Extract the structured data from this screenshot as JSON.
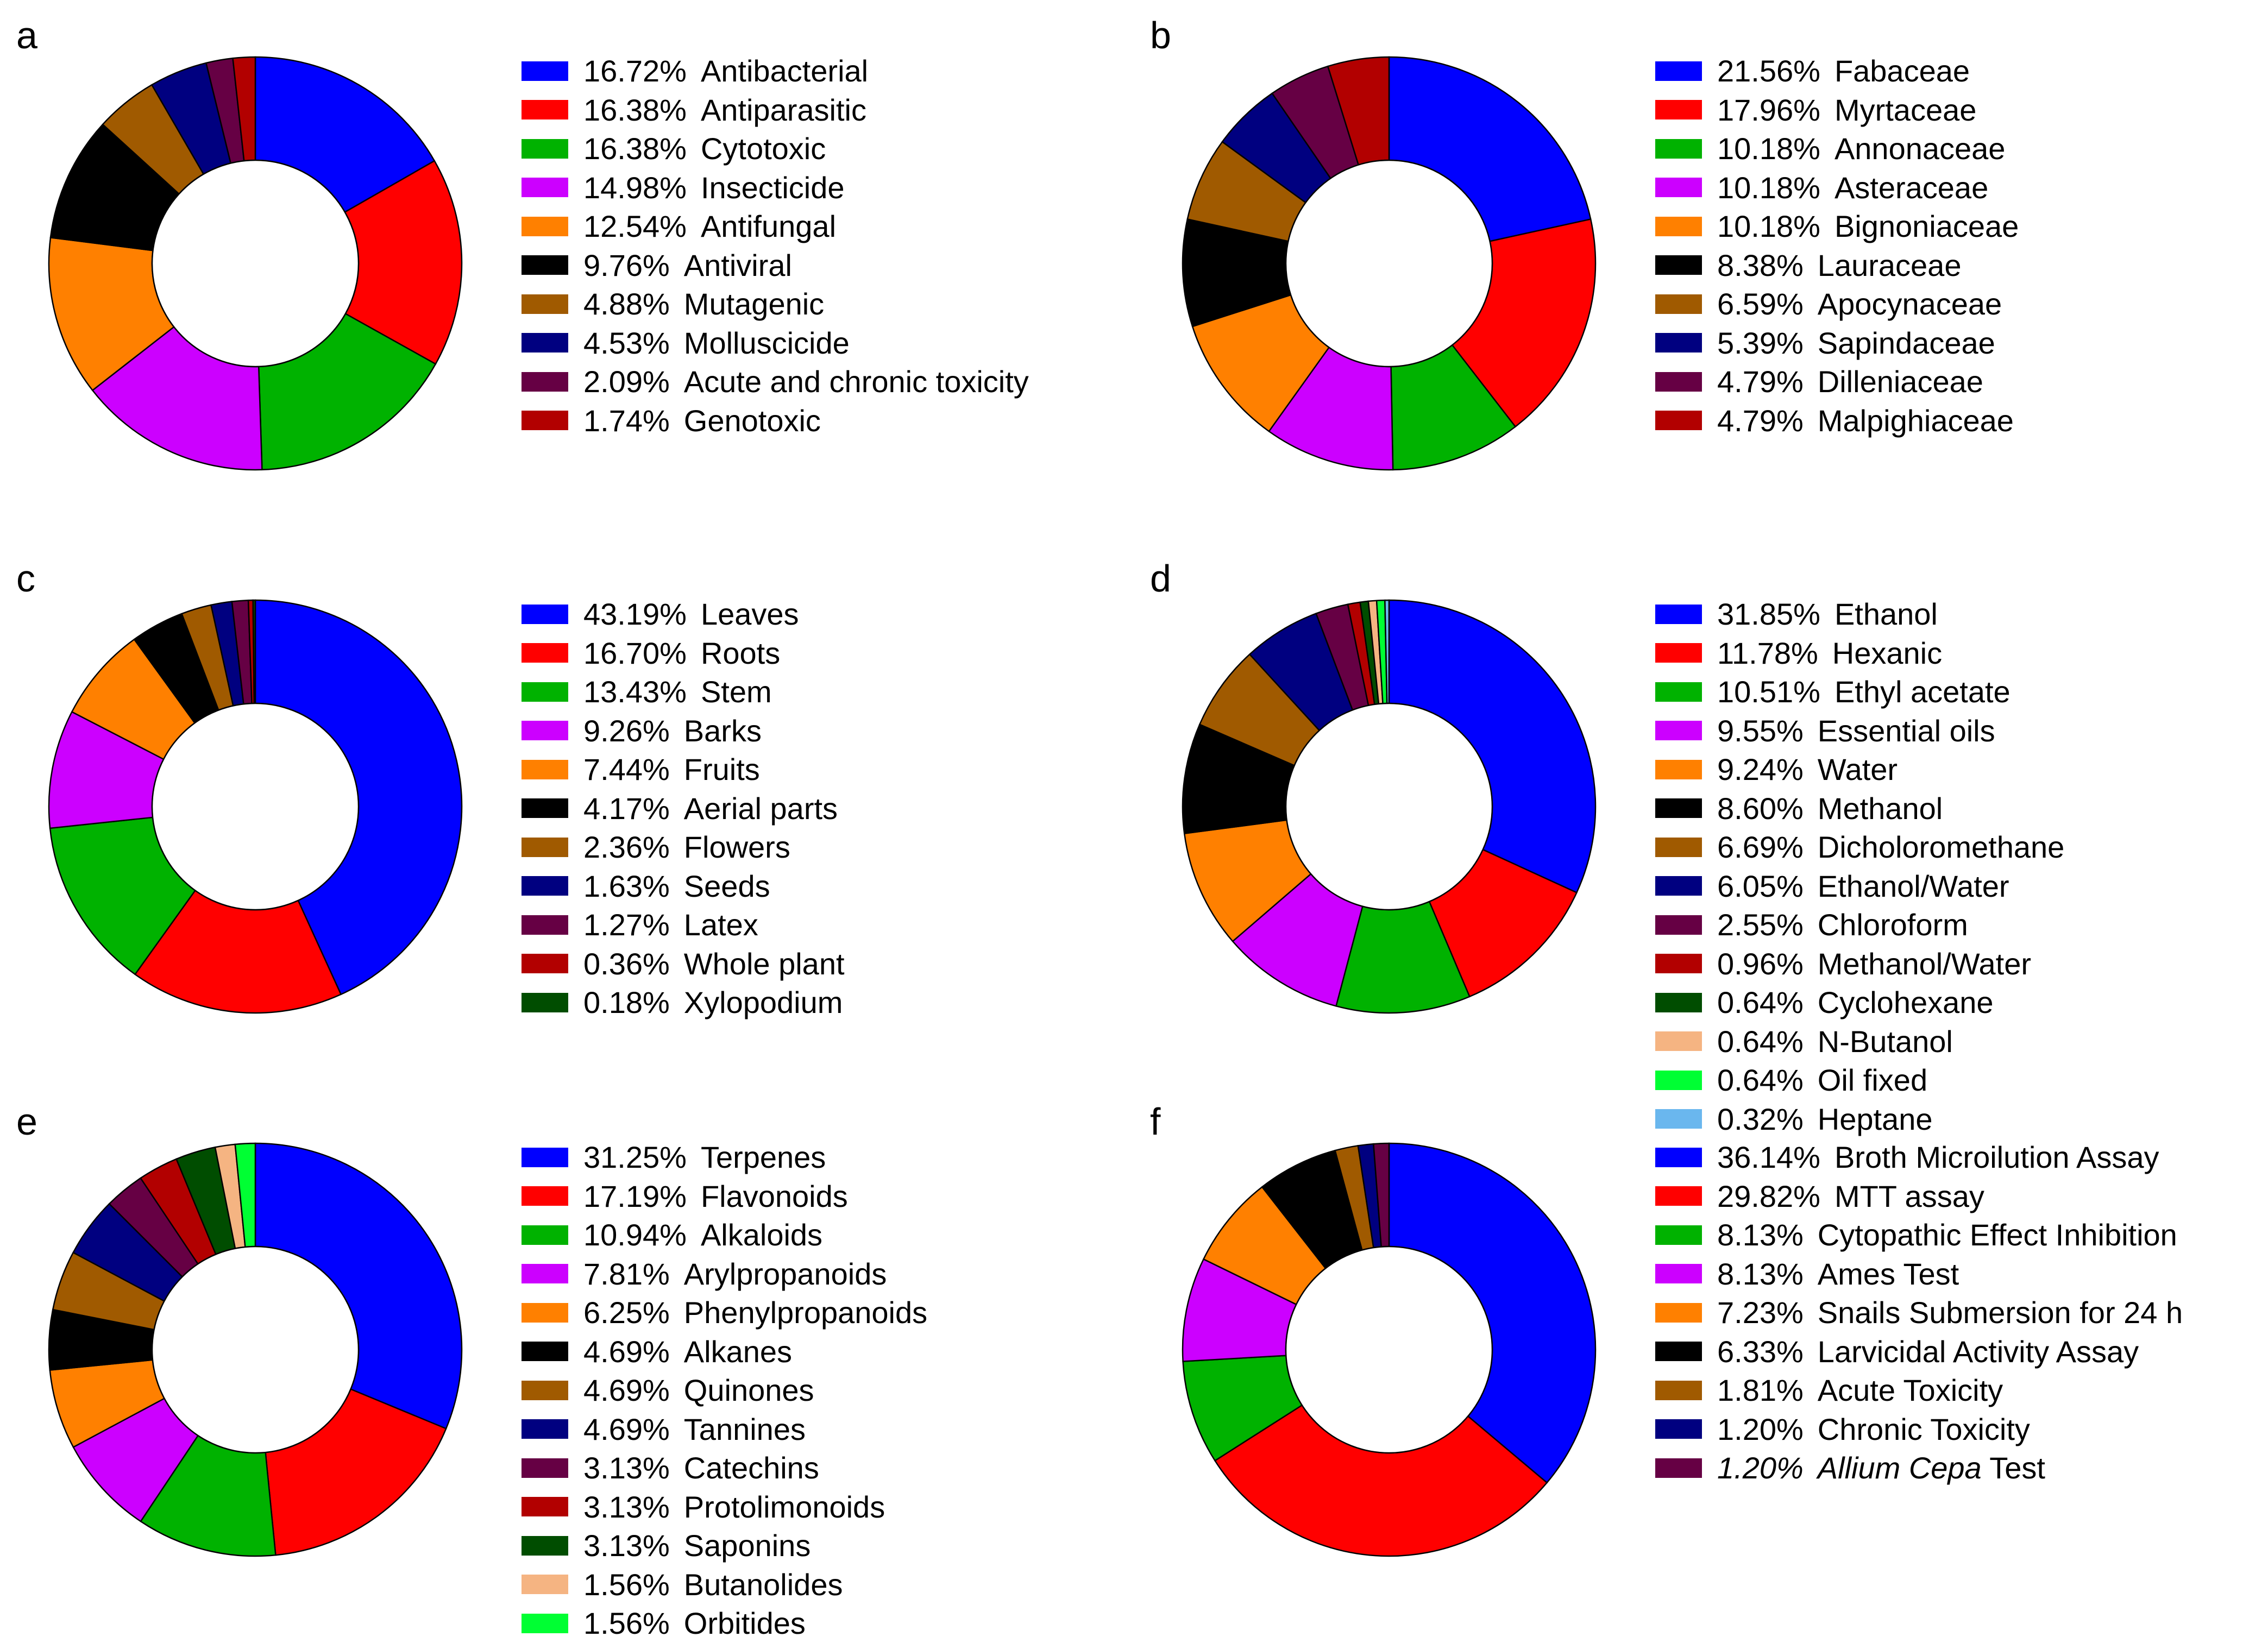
{
  "chart_data": [
    {
      "type": "pie",
      "panel": "a",
      "series": [
        {
          "value": 16.72,
          "pct": "16.72%",
          "label": "Antibacterial",
          "color": "#0000ff"
        },
        {
          "value": 16.38,
          "pct": "16.38%",
          "label": "Antiparasitic",
          "color": "#ff0000"
        },
        {
          "value": 16.38,
          "pct": "16.38%",
          "label": "Cytotoxic",
          "color": "#00b200"
        },
        {
          "value": 14.98,
          "pct": "14.98%",
          "label": "Insecticide",
          "color": "#cc00ff"
        },
        {
          "value": 12.54,
          "pct": "12.54%",
          "label": "Antifungal",
          "color": "#ff8000"
        },
        {
          "value": 9.76,
          "pct": "9.76%",
          "label": "Antiviral",
          "color": "#000000"
        },
        {
          "value": 4.88,
          "pct": "4.88%",
          "label": "Mutagenic",
          "color": "#a05a00"
        },
        {
          "value": 4.53,
          "pct": "4.53%",
          "label": "Molluscicide",
          "color": "#000080"
        },
        {
          "value": 2.09,
          "pct": "2.09%",
          "label": "Acute and chronic toxicity",
          "color": "#660044"
        },
        {
          "value": 1.74,
          "pct": "1.74%",
          "label": "Genotoxic",
          "color": "#b20000"
        }
      ]
    },
    {
      "type": "pie",
      "panel": "b",
      "series": [
        {
          "value": 21.56,
          "pct": "21.56%",
          "label": "Fabaceae",
          "color": "#0000ff"
        },
        {
          "value": 17.96,
          "pct": "17.96%",
          "label": "Myrtaceae",
          "color": "#ff0000"
        },
        {
          "value": 10.18,
          "pct": "10.18%",
          "label": "Annonaceae",
          "color": "#00b200"
        },
        {
          "value": 10.18,
          "pct": "10.18%",
          "label": "Asteraceae",
          "color": "#cc00ff"
        },
        {
          "value": 10.18,
          "pct": "10.18%",
          "label": "Bignoniaceae",
          "color": "#ff8000"
        },
        {
          "value": 8.38,
          "pct": "8.38%",
          "label": "Lauraceae",
          "color": "#000000"
        },
        {
          "value": 6.59,
          "pct": "6.59%",
          "label": "Apocynaceae",
          "color": "#a05a00"
        },
        {
          "value": 5.39,
          "pct": "5.39%",
          "label": "Sapindaceae",
          "color": "#000080"
        },
        {
          "value": 4.79,
          "pct": "4.79%",
          "label": "Dilleniaceae",
          "color": "#660044"
        },
        {
          "value": 4.79,
          "pct": "4.79%",
          "label": "Malpighiaceae",
          "color": "#b20000"
        }
      ]
    },
    {
      "type": "pie",
      "panel": "c",
      "series": [
        {
          "value": 43.19,
          "pct": "43.19%",
          "label": "Leaves",
          "color": "#0000ff"
        },
        {
          "value": 16.7,
          "pct": "16.70%",
          "label": "Roots",
          "color": "#ff0000"
        },
        {
          "value": 13.43,
          "pct": "13.43%",
          "label": "Stem",
          "color": "#00b200"
        },
        {
          "value": 9.26,
          "pct": "9.26%",
          "label": "Barks",
          "color": "#cc00ff"
        },
        {
          "value": 7.44,
          "pct": "7.44%",
          "label": "Fruits",
          "color": "#ff8000"
        },
        {
          "value": 4.17,
          "pct": "4.17%",
          "label": "Aerial parts",
          "color": "#000000"
        },
        {
          "value": 2.36,
          "pct": "2.36%",
          "label": "Flowers",
          "color": "#a05a00"
        },
        {
          "value": 1.63,
          "pct": "1.63%",
          "label": "Seeds",
          "color": "#000080"
        },
        {
          "value": 1.27,
          "pct": "1.27%",
          "label": "Latex",
          "color": "#660044"
        },
        {
          "value": 0.36,
          "pct": "0.36%",
          "label": "Whole plant",
          "color": "#b20000"
        },
        {
          "value": 0.18,
          "pct": "0.18%",
          "label": "Xylopodium",
          "color": "#004d00"
        }
      ]
    },
    {
      "type": "pie",
      "panel": "d",
      "series": [
        {
          "value": 31.85,
          "pct": "31.85%",
          "label": "Ethanol",
          "color": "#0000ff"
        },
        {
          "value": 11.78,
          "pct": "11.78%",
          "label": "Hexanic",
          "color": "#ff0000"
        },
        {
          "value": 10.51,
          "pct": "10.51%",
          "label": "Ethyl acetate",
          "color": "#00b200"
        },
        {
          "value": 9.55,
          "pct": "9.55%",
          "label": "Essential oils",
          "color": "#cc00ff"
        },
        {
          "value": 9.24,
          "pct": "9.24%",
          "label": "Water",
          "color": "#ff8000"
        },
        {
          "value": 8.6,
          "pct": "8.60%",
          "label": "Methanol",
          "color": "#000000"
        },
        {
          "value": 6.69,
          "pct": "6.69%",
          "label": "Dicholoromethane",
          "color": "#a05a00"
        },
        {
          "value": 6.05,
          "pct": "6.05%",
          "label": "Ethanol/Water",
          "color": "#000080"
        },
        {
          "value": 2.55,
          "pct": "2.55%",
          "label": "Chloroform",
          "color": "#660044"
        },
        {
          "value": 0.96,
          "pct": "0.96%",
          "label": "Methanol/Water",
          "color": "#b20000"
        },
        {
          "value": 0.64,
          "pct": "0.64%",
          "label": "Cyclohexane",
          "color": "#004d00"
        },
        {
          "value": 0.64,
          "pct": "0.64%",
          "label": "N-Butanol",
          "color": "#f5b482"
        },
        {
          "value": 0.64,
          "pct": "0.64%",
          "label": "Oil fixed",
          "color": "#00ff33"
        },
        {
          "value": 0.32,
          "pct": "0.32%",
          "label": "Heptane",
          "color": "#6ab7ee"
        }
      ]
    },
    {
      "type": "pie",
      "panel": "e",
      "series": [
        {
          "value": 31.25,
          "pct": "31.25%",
          "label": "Terpenes",
          "color": "#0000ff"
        },
        {
          "value": 17.19,
          "pct": "17.19%",
          "label": "Flavonoids",
          "color": "#ff0000"
        },
        {
          "value": 10.94,
          "pct": "10.94%",
          "label": "Alkaloids",
          "color": "#00b200"
        },
        {
          "value": 7.81,
          "pct": "7.81%",
          "label": "Arylpropanoids",
          "color": "#cc00ff"
        },
        {
          "value": 6.25,
          "pct": "6.25%",
          "label": "Phenylpropanoids",
          "color": "#ff8000"
        },
        {
          "value": 4.69,
          "pct": "4.69%",
          "label": "Alkanes",
          "color": "#000000"
        },
        {
          "value": 4.69,
          "pct": "4.69%",
          "label": "Quinones",
          "color": "#a05a00"
        },
        {
          "value": 4.69,
          "pct": "4.69%",
          "label": "Tannines",
          "color": "#000080"
        },
        {
          "value": 3.13,
          "pct": "3.13%",
          "label": "Catechins",
          "color": "#660044"
        },
        {
          "value": 3.13,
          "pct": "3.13%",
          "label": "Protolimonoids",
          "color": "#b20000"
        },
        {
          "value": 3.13,
          "pct": "3.13%",
          "label": "Saponins",
          "color": "#004d00"
        },
        {
          "value": 1.56,
          "pct": "1.56%",
          "label": "Butanolides",
          "color": "#f5b482"
        },
        {
          "value": 1.56,
          "pct": "1.56%",
          "label": "Orbitides",
          "color": "#00ff33"
        }
      ]
    },
    {
      "type": "pie",
      "panel": "f",
      "series": [
        {
          "value": 36.14,
          "pct": "36.14%",
          "label": "Broth Microilution Assay",
          "color": "#0000ff"
        },
        {
          "value": 29.82,
          "pct": "29.82%",
          "label": "MTT assay",
          "color": "#ff0000"
        },
        {
          "value": 8.13,
          "pct": "8.13%",
          "label": "Cytopathic Effect Inhibition",
          "color": "#00b200"
        },
        {
          "value": 8.13,
          "pct": "8.13%",
          "label": "Ames Test",
          "color": "#cc00ff"
        },
        {
          "value": 7.23,
          "pct": "7.23%",
          "label": "Snails Submersion for 24 h",
          "color": "#ff8000"
        },
        {
          "value": 6.33,
          "pct": "6.33%",
          "label": "Larvicidal Activity Assay",
          "color": "#000000"
        },
        {
          "value": 1.81,
          "pct": "1.81%",
          "label": "Acute Toxicity",
          "color": "#a05a00"
        },
        {
          "value": 1.2,
          "pct": "1.20%",
          "label": "Chronic Toxicity",
          "color": "#000080"
        },
        {
          "value": 1.2,
          "pct": "1.20%",
          "label": "Allium Cepa Test",
          "color": "#660044"
        }
      ]
    }
  ]
}
